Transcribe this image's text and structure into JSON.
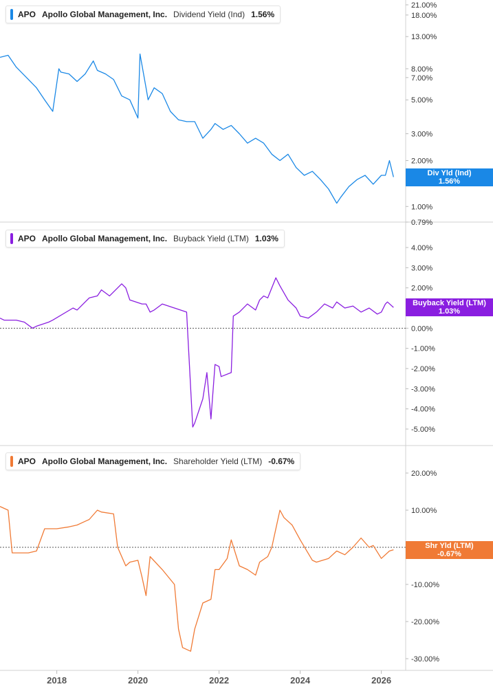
{
  "colors": {
    "dividend": "#1a88e6",
    "buyback": "#8a1ee0",
    "shareholder": "#f07a35"
  },
  "chart_data": [
    {
      "type": "line",
      "panel": "dividend",
      "legend": {
        "ticker": "APO",
        "company": "Apollo Global Management, Inc.",
        "metric": "Dividend Yield (Ind)",
        "value": "1.56%"
      },
      "tag": {
        "label": "Div Yld (Ind)",
        "value": "1.56%"
      },
      "scale": "log",
      "ylim": [
        0.79,
        21.0
      ],
      "yticks": [
        0.79,
        1.0,
        2.0,
        3.0,
        5.0,
        7.0,
        8.0,
        13.0,
        18.0,
        21.0
      ],
      "ytick_labels": [
        "0.79%",
        "1.00%",
        "2.00%",
        "3.00%",
        "5.00%",
        "7.00%",
        "8.00%",
        "13.00%",
        "18.00%",
        "21.00%"
      ],
      "series": [
        {
          "x": [
            2016.6,
            2016.8,
            2017.0,
            2017.3,
            2017.5,
            2017.7,
            2017.9,
            2018.05,
            2018.1,
            2018.3,
            2018.5,
            2018.7,
            2018.9,
            2019.0,
            2019.2,
            2019.4,
            2019.6,
            2019.8,
            2020.0,
            2020.05,
            2020.2,
            2020.25,
            2020.4,
            2020.6,
            2020.8,
            2021.0,
            2021.2,
            2021.4,
            2021.6,
            2021.8,
            2021.9,
            2022.1,
            2022.3,
            2022.5,
            2022.7,
            2022.9,
            2023.1,
            2023.3,
            2023.5,
            2023.7,
            2023.9,
            2024.1,
            2024.3,
            2024.5,
            2024.7,
            2024.9,
            2025.0,
            2025.2,
            2025.4,
            2025.6,
            2025.8,
            2026.0,
            2026.1,
            2026.2,
            2026.3
          ],
          "values": [
            9.5,
            9.8,
            8.2,
            6.8,
            6.0,
            5.0,
            4.2,
            8.0,
            7.6,
            7.4,
            6.6,
            7.4,
            9.0,
            7.8,
            7.4,
            6.8,
            5.3,
            5.0,
            3.8,
            10.0,
            6.0,
            5.0,
            6.0,
            5.5,
            4.2,
            3.7,
            3.6,
            3.6,
            2.8,
            3.2,
            3.5,
            3.2,
            3.4,
            3.0,
            2.6,
            2.8,
            2.6,
            2.2,
            2.0,
            2.2,
            1.8,
            1.6,
            1.7,
            1.5,
            1.3,
            1.05,
            1.15,
            1.35,
            1.5,
            1.6,
            1.4,
            1.6,
            1.6,
            2.0,
            1.56
          ]
        }
      ]
    },
    {
      "type": "line",
      "panel": "buyback",
      "legend": {
        "ticker": "APO",
        "company": "Apollo Global Management, Inc.",
        "metric": "Buyback Yield (LTM)",
        "value": "1.03%"
      },
      "tag": {
        "label": "Buyback Yield (LTM)",
        "value": "1.03%"
      },
      "scale": "linear",
      "ylim": [
        -5.0,
        4.0
      ],
      "yticks": [
        -5,
        -4,
        -3,
        -2,
        -1,
        0,
        1,
        2,
        3,
        4
      ],
      "ytick_labels": [
        "-5.00%",
        "-4.00%",
        "-3.00%",
        "-2.00%",
        "-1.00%",
        "0.00%",
        "1.00%",
        "2.00%",
        "3.00%",
        "4.00%"
      ],
      "series": [
        {
          "x": [
            2016.6,
            2016.7,
            2017.0,
            2017.2,
            2017.4,
            2017.5,
            2017.8,
            2017.9,
            2018.4,
            2018.5,
            2018.8,
            2019.0,
            2019.1,
            2019.3,
            2019.6,
            2019.7,
            2019.8,
            2020.1,
            2020.2,
            2020.3,
            2020.4,
            2020.6,
            2020.9,
            2021.2,
            2021.35,
            2021.4,
            2021.6,
            2021.7,
            2021.8,
            2021.9,
            2022.0,
            2022.05,
            2022.3,
            2022.35,
            2022.5,
            2022.7,
            2022.9,
            2023.0,
            2023.1,
            2023.2,
            2023.4,
            2023.5,
            2023.7,
            2023.9,
            2024.0,
            2024.2,
            2024.4,
            2024.6,
            2024.8,
            2024.9,
            2025.1,
            2025.3,
            2025.5,
            2025.7,
            2025.9,
            2026.0,
            2026.1,
            2026.15,
            2026.3
          ],
          "values": [
            0.5,
            0.4,
            0.4,
            0.3,
            0.0,
            0.1,
            0.3,
            0.4,
            1.0,
            0.9,
            1.5,
            1.6,
            1.9,
            1.6,
            2.2,
            2.0,
            1.4,
            1.2,
            1.2,
            0.8,
            0.9,
            1.2,
            1.0,
            0.8,
            -4.9,
            -4.7,
            -3.5,
            -2.2,
            -4.5,
            -1.8,
            -1.9,
            -2.4,
            -2.2,
            0.6,
            0.8,
            1.2,
            0.9,
            1.4,
            1.6,
            1.5,
            2.5,
            2.1,
            1.4,
            1.0,
            0.6,
            0.5,
            0.8,
            1.2,
            1.0,
            1.3,
            1.0,
            1.1,
            0.8,
            1.0,
            0.7,
            0.8,
            1.2,
            1.3,
            1.03
          ]
        }
      ]
    },
    {
      "type": "line",
      "panel": "shareholder",
      "legend": {
        "ticker": "APO",
        "company": "Apollo Global Management, Inc.",
        "metric": "Shareholder Yield (LTM)",
        "value": "-0.67%"
      },
      "tag": {
        "label": "Shr Yld (LTM)",
        "value": "-0.67%"
      },
      "scale": "linear",
      "ylim": [
        -30.0,
        20.0
      ],
      "yticks": [
        -30,
        -20,
        -10,
        0,
        10,
        20
      ],
      "ytick_labels": [
        "-30.00%",
        "-20.00%",
        "-10.00%",
        "0.00%",
        "10.00%",
        "20.00%"
      ],
      "series": [
        {
          "x": [
            2016.6,
            2016.8,
            2016.9,
            2017.3,
            2017.5,
            2017.7,
            2018.0,
            2018.3,
            2018.5,
            2018.8,
            2019.0,
            2019.1,
            2019.4,
            2019.5,
            2019.7,
            2019.8,
            2020.0,
            2020.1,
            2020.2,
            2020.3,
            2020.6,
            2020.9,
            2021.0,
            2021.1,
            2021.3,
            2021.4,
            2021.6,
            2021.8,
            2021.9,
            2022.0,
            2022.2,
            2022.3,
            2022.5,
            2022.7,
            2022.9,
            2023.0,
            2023.2,
            2023.3,
            2023.5,
            2023.6,
            2023.8,
            2024.0,
            2024.3,
            2024.4,
            2024.7,
            2024.9,
            2025.1,
            2025.3,
            2025.5,
            2025.7,
            2025.8,
            2026.0,
            2026.2,
            2026.3
          ],
          "values": [
            11.0,
            10.0,
            -1.5,
            -1.5,
            -1.0,
            5.0,
            5.0,
            5.5,
            6.0,
            7.5,
            10.0,
            9.5,
            9.0,
            0.0,
            -5.0,
            -4.0,
            -3.5,
            -8.0,
            -13.0,
            -2.5,
            -6.0,
            -10.0,
            -22.0,
            -27.0,
            -28.0,
            -22.0,
            -15.0,
            -14.0,
            -6.0,
            -6.0,
            -3.0,
            2.0,
            -5.0,
            -6.0,
            -7.5,
            -4.0,
            -2.5,
            0.0,
            10.0,
            8.0,
            6.0,
            2.0,
            -3.5,
            -4.0,
            -3.0,
            -1.0,
            -2.0,
            0.0,
            2.5,
            0.0,
            0.5,
            -3.0,
            -1.0,
            -0.67
          ]
        }
      ]
    }
  ],
  "xaxis": {
    "ticks": [
      2018,
      2020,
      2022,
      2024,
      2026
    ],
    "labels": [
      "2018",
      "2020",
      "2022",
      "2024",
      "2026"
    ],
    "range": [
      2016.6,
      2026.6
    ]
  }
}
